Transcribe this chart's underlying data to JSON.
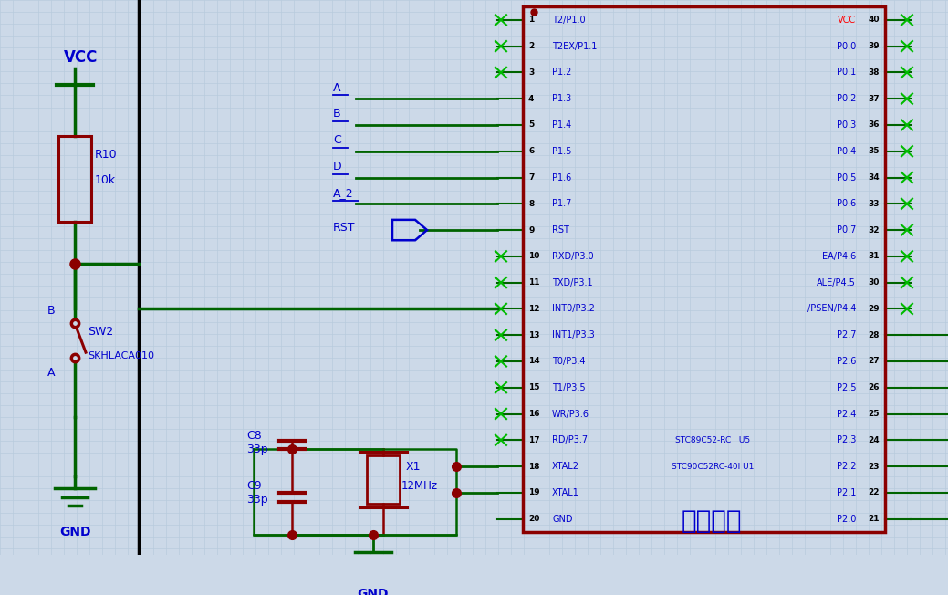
{
  "bg_color": "#ccd9e8",
  "grid_color": "#b8ccdd",
  "wire_color": "#006400",
  "component_color": "#8b0000",
  "label_color": "#0000cd",
  "red_label_color": "#ff0000",
  "black_label_color": "#000000",
  "left_pins": [
    "T2/P1.0",
    "T2EX/P1.1",
    "P1.2",
    "P1.3",
    "P1.4",
    "P1.5",
    "P1.6",
    "P1.7",
    "RST",
    "RXD/P3.0",
    "TXD/P3.1",
    "INT0/P3.2",
    "INT1/P3.3",
    "T0/P3.4",
    "T1/P3.5",
    "WR/P3.6",
    "RD/P3.7",
    "XTAL2",
    "XTAL1",
    "GND"
  ],
  "right_pins": [
    "VCC",
    "P0.0",
    "P0.1",
    "P0.2",
    "P0.3",
    "P0.4",
    "P0.5",
    "P0.6",
    "P0.7",
    "EA/P4.6",
    "ALE/P4.5",
    "/PSEN/P4.4",
    "P2.7",
    "P2.6",
    "P2.5",
    "P2.4",
    "P2.3",
    "P2.2",
    "P2.1",
    "P2.0"
  ],
  "left_pin_nums": [
    1,
    2,
    3,
    4,
    5,
    6,
    7,
    8,
    9,
    10,
    11,
    12,
    13,
    14,
    15,
    16,
    17,
    18,
    19,
    20
  ],
  "right_pin_nums": [
    40,
    39,
    38,
    37,
    36,
    35,
    34,
    33,
    32,
    31,
    30,
    29,
    28,
    27,
    26,
    25,
    24,
    23,
    22,
    21
  ],
  "subtitle": "控制电路",
  "ic_name1": "STC89C52-RC   U5",
  "ic_name2": "STC90C52RC-40I U1",
  "bus_labels": [
    "A",
    "B",
    "C",
    "D",
    "A_2"
  ]
}
